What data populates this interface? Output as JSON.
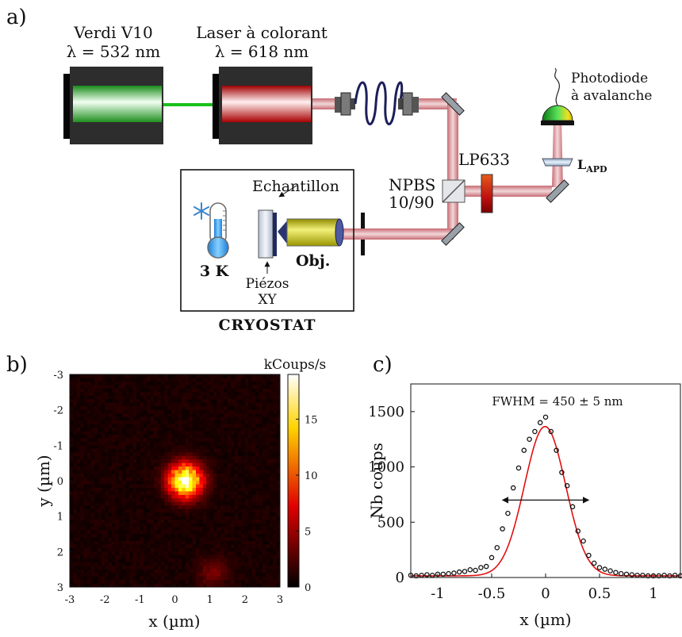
{
  "panel_labels": {
    "a": "a)",
    "b": "b)",
    "c": "c)"
  },
  "setup": {
    "verdi_name": "Verdi V10",
    "verdi_lambda": "λ = 532 nm",
    "dye_name": "Laser à colorant",
    "dye_lambda": "λ = 618 nm",
    "photodiode_line1": "Photodiode",
    "photodiode_line2": "à avalanche",
    "lens_apd": "L",
    "lens_apd_sub": "APD",
    "filter": "LP633",
    "beamsplitter_line1": "NPBS",
    "beamsplitter_line2": "10/90",
    "sample": "Echantillon",
    "objective": "Obj.",
    "temperature": "3 K",
    "piezos_line1": "Piézos",
    "piezos_line2": "XY",
    "cryostat": "CRYOSTAT",
    "colors": {
      "green_beam": "#19c019",
      "red_beam": "#c9878c",
      "objective": "#c9c40a",
      "body": "#2a2a2a"
    }
  },
  "chart_data": [
    {
      "type": "heatmap",
      "xlabel": "x (µm)",
      "ylabel": "y (µm)",
      "colorbar_label": "kCoups/s",
      "x_range": [
        -3,
        3
      ],
      "y_range": [
        -3,
        3
      ],
      "y_inverted": true,
      "x_ticks": [
        "-3",
        "-2",
        "-1",
        "0",
        "1",
        "2",
        "3"
      ],
      "y_ticks": [
        "-3",
        "-2",
        "-1",
        "0",
        "1",
        "2",
        "3"
      ],
      "colorbar_ticks": [
        "0",
        "5",
        "10",
        "15"
      ],
      "colorbar_range": [
        0,
        19
      ],
      "colormap": "hot",
      "spots": [
        {
          "x": 0.3,
          "y": 0.0,
          "peak": 18,
          "sigma": 0.33
        },
        {
          "x": 1.1,
          "y": 2.6,
          "peak": 2.5,
          "sigma": 0.3
        }
      ],
      "background": 0.8
    },
    {
      "type": "scatter",
      "xlabel": "x (µm)",
      "ylabel": "Nb coups",
      "annotation": "FWHM = 450 ± 5 nm",
      "xlim": [
        -1.25,
        1.25
      ],
      "ylim": [
        0,
        1750
      ],
      "x_ticks": [
        "-1",
        "-0.5",
        "0",
        "0.5",
        "1"
      ],
      "y_ticks": [
        "0",
        "500",
        "1000",
        "1500"
      ],
      "grid": false,
      "series": [
        {
          "style": "markers",
          "x": [
            -1.25,
            -1.2,
            -1.15,
            -1.1,
            -1.05,
            -1.0,
            -0.95,
            -0.9,
            -0.85,
            -0.8,
            -0.75,
            -0.7,
            -0.65,
            -0.6,
            -0.55,
            -0.5,
            -0.45,
            -0.4,
            -0.35,
            -0.3,
            -0.25,
            -0.2,
            -0.15,
            -0.1,
            -0.05,
            0.0,
            0.05,
            0.1,
            0.15,
            0.2,
            0.25,
            0.3,
            0.35,
            0.4,
            0.45,
            0.5,
            0.55,
            0.6,
            0.65,
            0.7,
            0.75,
            0.8,
            0.85,
            0.9,
            0.95,
            1.0,
            1.05,
            1.1,
            1.15,
            1.2,
            1.25
          ],
          "y": [
            20,
            15,
            20,
            25,
            20,
            30,
            30,
            35,
            40,
            50,
            55,
            70,
            65,
            90,
            100,
            180,
            270,
            440,
            580,
            810,
            990,
            1150,
            1250,
            1320,
            1400,
            1450,
            1320,
            1150,
            950,
            830,
            640,
            420,
            330,
            200,
            130,
            90,
            75,
            60,
            45,
            35,
            30,
            25,
            20,
            20,
            15,
            15,
            15,
            20,
            15,
            20,
            15
          ]
        },
        {
          "style": "line",
          "color": "#e01010",
          "fit": "gaussian",
          "amplitude": 1350,
          "center": -0.005,
          "fwhm": 0.45,
          "offset": 15
        },
        {
          "style": "double-arrow",
          "x_start": -0.4,
          "x_end": 0.4,
          "y": 700
        }
      ]
    }
  ]
}
